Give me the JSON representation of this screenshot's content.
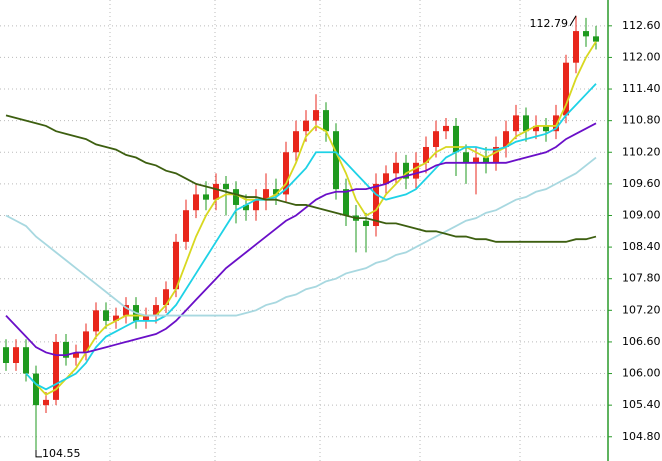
{
  "chart_data": {
    "type": "candlestick",
    "categories": [
      null,
      null,
      null,
      null,
      null,
      null,
      null,
      null,
      null,
      null,
      null,
      null,
      null,
      null,
      null,
      null,
      null,
      null,
      null,
      null,
      null,
      null,
      null,
      null,
      null,
      null,
      null,
      null,
      null,
      null,
      null,
      null,
      null,
      null,
      null,
      null,
      null,
      null,
      null,
      null,
      null,
      null,
      null,
      null,
      null,
      null,
      null,
      null,
      null,
      null,
      null,
      null,
      null,
      null,
      null,
      null,
      null,
      null,
      null,
      null
    ],
    "open": [
      106.5,
      106.2,
      106.5,
      106.0,
      105.4,
      105.5,
      106.6,
      106.3,
      106.4,
      106.8,
      107.2,
      107.0,
      107.1,
      107.3,
      107.0,
      107.1,
      107.3,
      107.6,
      108.5,
      109.1,
      109.4,
      109.3,
      109.6,
      109.5,
      109.2,
      109.1,
      109.3,
      109.5,
      109.4,
      110.2,
      110.6,
      110.8,
      111.0,
      110.6,
      109.5,
      109.0,
      108.9,
      108.8,
      109.6,
      109.8,
      110.0,
      109.7,
      110.0,
      110.3,
      110.6,
      110.7,
      110.2,
      110.0,
      110.1,
      110.0,
      110.3,
      110.6,
      110.9,
      110.6,
      110.7,
      110.6,
      110.9,
      111.9,
      112.5,
      112.4
    ],
    "high": [
      106.65,
      106.65,
      106.65,
      106.15,
      105.65,
      106.75,
      106.75,
      106.55,
      106.95,
      107.35,
      107.35,
      107.25,
      107.45,
      107.45,
      107.25,
      107.45,
      107.75,
      108.65,
      109.3,
      109.6,
      109.65,
      109.8,
      109.75,
      109.65,
      109.4,
      109.5,
      109.8,
      109.7,
      110.4,
      110.8,
      111.0,
      111.3,
      111.15,
      110.75,
      109.7,
      109.2,
      109.05,
      109.8,
      109.95,
      110.2,
      110.15,
      110.2,
      110.5,
      110.8,
      110.85,
      110.85,
      110.35,
      110.3,
      110.3,
      110.5,
      110.8,
      111.1,
      111.05,
      110.9,
      110.85,
      111.1,
      112.05,
      112.79,
      112.75,
      112.6
    ],
    "low": [
      106.05,
      106.05,
      105.85,
      104.55,
      105.25,
      105.4,
      106.15,
      106.15,
      106.25,
      106.65,
      106.85,
      106.85,
      106.95,
      106.85,
      106.85,
      106.95,
      107.15,
      107.45,
      108.35,
      108.95,
      109.1,
      109.1,
      109.0,
      108.85,
      108.9,
      108.9,
      109.1,
      109.2,
      109.25,
      110.0,
      110.4,
      110.6,
      110.4,
      109.3,
      108.8,
      108.3,
      108.3,
      108.6,
      109.4,
      109.6,
      109.5,
      109.5,
      109.8,
      110.1,
      110.45,
      109.75,
      109.6,
      109.4,
      109.8,
      109.85,
      110.1,
      110.45,
      110.4,
      110.45,
      110.4,
      110.45,
      110.75,
      111.7,
      112.2,
      112.15
    ],
    "close": [
      106.2,
      106.5,
      106.0,
      105.4,
      105.5,
      106.6,
      106.3,
      106.4,
      106.8,
      107.2,
      107.0,
      107.1,
      107.3,
      107.0,
      107.1,
      107.3,
      107.6,
      108.5,
      109.1,
      109.4,
      109.3,
      109.6,
      109.5,
      109.2,
      109.1,
      109.3,
      109.5,
      109.4,
      110.2,
      110.6,
      110.8,
      111.0,
      110.6,
      109.5,
      109.0,
      108.9,
      108.8,
      109.6,
      109.8,
      110.0,
      109.7,
      110.0,
      110.3,
      110.6,
      110.7,
      110.2,
      110.0,
      110.1,
      110.0,
      110.3,
      110.6,
      110.9,
      110.6,
      110.7,
      110.6,
      110.9,
      111.9,
      112.5,
      112.4,
      112.3
    ],
    "up_color": "#e8271c",
    "down_color": "#1f9a1f",
    "lines": [
      {
        "color": "#d8d820",
        "values": [
          null,
          null,
          null,
          105.8,
          105.6,
          105.7,
          105.9,
          106.1,
          106.4,
          106.7,
          106.9,
          107.0,
          107.1,
          107.1,
          107.1,
          107.1,
          107.3,
          107.6,
          108.1,
          108.6,
          109.0,
          109.3,
          109.4,
          109.4,
          109.3,
          109.3,
          109.3,
          109.4,
          109.6,
          110.0,
          110.5,
          110.7,
          110.6,
          110.2,
          109.8,
          109.3,
          109.0,
          109.1,
          109.4,
          109.6,
          109.8,
          109.9,
          110.0,
          110.2,
          110.3,
          110.3,
          110.3,
          110.2,
          110.1,
          110.2,
          110.3,
          110.5,
          110.6,
          110.7,
          110.7,
          110.7,
          111.1,
          111.6,
          112.0,
          112.3
        ]
      },
      {
        "color": "#1ed2e6",
        "values": [
          null,
          null,
          106.0,
          105.8,
          105.7,
          105.8,
          105.9,
          106.0,
          106.2,
          106.5,
          106.7,
          106.8,
          106.9,
          107.0,
          107.0,
          107.0,
          107.1,
          107.3,
          107.6,
          107.9,
          108.2,
          108.5,
          108.8,
          109.1,
          109.2,
          109.3,
          109.3,
          109.35,
          109.5,
          109.7,
          109.9,
          110.2,
          110.2,
          110.2,
          110.0,
          109.8,
          109.6,
          109.4,
          109.3,
          109.35,
          109.4,
          109.5,
          109.7,
          109.9,
          110.1,
          110.2,
          110.3,
          110.3,
          110.25,
          110.25,
          110.3,
          110.4,
          110.45,
          110.5,
          110.55,
          110.65,
          110.9,
          111.1,
          111.3,
          111.5
        ]
      },
      {
        "color": "#6a0fc8",
        "values": [
          107.1,
          106.9,
          106.7,
          106.5,
          106.4,
          106.35,
          106.35,
          106.4,
          106.4,
          106.45,
          106.5,
          106.55,
          106.6,
          106.65,
          106.7,
          106.75,
          106.85,
          107.0,
          107.2,
          107.4,
          107.6,
          107.8,
          108.0,
          108.15,
          108.3,
          108.45,
          108.6,
          108.75,
          108.9,
          109.0,
          109.15,
          109.3,
          109.4,
          109.45,
          109.45,
          109.5,
          109.5,
          109.55,
          109.6,
          109.7,
          109.75,
          109.8,
          109.85,
          109.95,
          110.0,
          110.0,
          110.0,
          110.0,
          110.0,
          110.0,
          110.0,
          110.05,
          110.1,
          110.15,
          110.2,
          110.3,
          110.45,
          110.55,
          110.65,
          110.75
        ]
      },
      {
        "color": "#a8d8e0",
        "values": [
          109.0,
          108.9,
          108.8,
          108.6,
          108.45,
          108.3,
          108.15,
          108.0,
          107.85,
          107.7,
          107.55,
          107.4,
          107.25,
          107.15,
          107.1,
          107.1,
          107.1,
          107.1,
          107.1,
          107.1,
          107.1,
          107.1,
          107.1,
          107.1,
          107.15,
          107.2,
          107.3,
          107.35,
          107.45,
          107.5,
          107.6,
          107.65,
          107.75,
          107.8,
          107.9,
          107.95,
          108.0,
          108.1,
          108.15,
          108.25,
          108.3,
          108.4,
          108.5,
          108.6,
          108.7,
          108.8,
          108.9,
          108.95,
          109.05,
          109.1,
          109.2,
          109.3,
          109.35,
          109.45,
          109.5,
          109.6,
          109.7,
          109.8,
          109.95,
          110.1
        ]
      },
      {
        "color": "#3d5f10",
        "values": [
          110.9,
          110.85,
          110.8,
          110.75,
          110.7,
          110.6,
          110.55,
          110.5,
          110.45,
          110.35,
          110.3,
          110.25,
          110.15,
          110.1,
          110.0,
          109.95,
          109.85,
          109.8,
          109.7,
          109.6,
          109.55,
          109.5,
          109.45,
          109.4,
          109.35,
          109.35,
          109.3,
          109.3,
          109.25,
          109.2,
          109.2,
          109.15,
          109.1,
          109.05,
          109.0,
          108.95,
          108.95,
          108.9,
          108.85,
          108.85,
          108.8,
          108.75,
          108.7,
          108.7,
          108.65,
          108.6,
          108.6,
          108.55,
          108.55,
          108.5,
          108.5,
          108.5,
          108.5,
          108.5,
          108.5,
          108.5,
          108.5,
          108.55,
          108.55,
          108.6
        ]
      }
    ],
    "annotations": [
      {
        "text": "112.79",
        "index": 57,
        "value": 112.79
      },
      {
        "text": "104.55",
        "index": 3,
        "value": 104.55
      }
    ],
    "ylim": [
      104.34,
      113.09
    ],
    "yticks": [
      {
        "value": 104.8,
        "label": "104.80"
      },
      {
        "value": 105.4,
        "label": "105.40"
      },
      {
        "value": 106.0,
        "label": "106.00"
      },
      {
        "value": 106.6,
        "label": "106.60"
      },
      {
        "value": 107.2,
        "label": "107.20"
      },
      {
        "value": 107.8,
        "label": "107.80"
      },
      {
        "value": 108.4,
        "label": "108.40"
      },
      {
        "value": 109.0,
        "label": "109.00"
      },
      {
        "value": 109.6,
        "label": "109.60"
      },
      {
        "value": 110.2,
        "label": "110.20"
      },
      {
        "value": 110.8,
        "label": "110.80"
      },
      {
        "value": 111.4,
        "label": "111.40"
      },
      {
        "value": 112.0,
        "label": "112.00"
      },
      {
        "value": 112.6,
        "label": "112.60"
      }
    ],
    "grid": true,
    "axis_color": "#2a9a2a"
  }
}
